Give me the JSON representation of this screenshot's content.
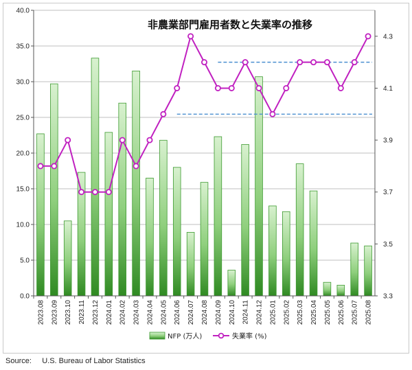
{
  "chart_data": {
    "type": "bar+line",
    "title": "非農業部門雇用者数と失業率の推移",
    "categories": [
      "2023.08",
      "2023.09",
      "2023.10",
      "2023.11",
      "2023.12",
      "2024.01",
      "2024.02",
      "2024.03",
      "2024.04",
      "2024.05",
      "2024.06",
      "2024.07",
      "2024.08",
      "2024.09",
      "2024.10",
      "2024.11",
      "2024.12",
      "2025.01",
      "2025.02",
      "2025.03",
      "2025.04",
      "2025.05",
      "2025.06",
      "2025.07",
      "2025.08"
    ],
    "series": [
      {
        "name": "NFP (万人)",
        "type": "bar",
        "axis": "left",
        "values": [
          22.7,
          29.7,
          10.5,
          17.3,
          33.3,
          22.9,
          27.0,
          31.5,
          16.5,
          21.8,
          18.0,
          8.9,
          15.9,
          22.3,
          3.6,
          21.2,
          30.7,
          12.6,
          11.8,
          18.5,
          14.7,
          1.9,
          1.5,
          7.4,
          7.0
        ]
      },
      {
        "name": "失業率 (%)",
        "type": "line",
        "axis": "right",
        "values": [
          3.8,
          3.8,
          3.9,
          3.7,
          3.7,
          3.7,
          3.9,
          3.8,
          3.9,
          4.0,
          4.1,
          4.3,
          4.2,
          4.1,
          4.1,
          4.2,
          4.1,
          4.0,
          4.1,
          4.2,
          4.2,
          4.2,
          4.1,
          4.2,
          4.3
        ]
      }
    ],
    "left_axis": {
      "ylim": [
        0,
        40
      ],
      "ticks": [
        "0.0",
        "5.0",
        "10.0",
        "15.0",
        "20.0",
        "25.0",
        "30.0",
        "35.0",
        "40.0"
      ]
    },
    "right_axis": {
      "ylim": [
        3.3,
        4.4
      ],
      "ticks": [
        "3.3",
        "3.5",
        "3.7",
        "3.9",
        "4.1",
        "4.3"
      ]
    },
    "reference_lines": [
      {
        "axis": "right",
        "value": 4.2,
        "from": "2024.09",
        "to": "2025.08",
        "style": "dashed"
      },
      {
        "axis": "right",
        "value": 4.0,
        "from": "2024.06",
        "to": "2025.08",
        "style": "dashed"
      }
    ],
    "colors": {
      "bar_dark": "#2e8b22",
      "bar_light": "#c9eac0",
      "line": "#c020c0",
      "marker_fill": "#ffffff",
      "ref_line": "#4a8fd0",
      "grid": "#bfbfbf"
    },
    "grid": true,
    "legend": {
      "position": "bottom"
    }
  },
  "source_text": "Source:     U.S. Bureau of Labor Statistics"
}
